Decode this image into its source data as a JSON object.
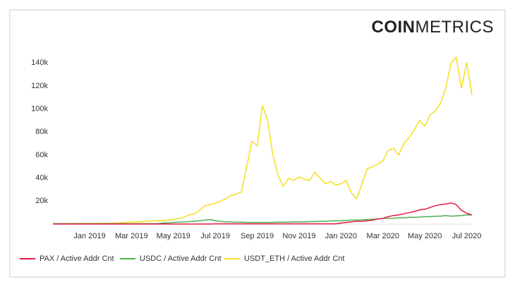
{
  "brand": {
    "bold": "COIN",
    "light": "METRICS"
  },
  "chart_data": {
    "type": "line",
    "categories": [
      null,
      null,
      null,
      null,
      null,
      null,
      null,
      "Jan 2019",
      null,
      null,
      null,
      null,
      null,
      null,
      null,
      "Mar 2019",
      null,
      null,
      null,
      null,
      null,
      null,
      null,
      "May 2019",
      null,
      null,
      null,
      null,
      null,
      null,
      null,
      "Jul 2019",
      null,
      null,
      null,
      null,
      null,
      null,
      null,
      "Sep 2019",
      null,
      null,
      null,
      null,
      null,
      null,
      null,
      "Nov 2019",
      null,
      null,
      null,
      null,
      null,
      null,
      null,
      "Jan 2020",
      null,
      null,
      null,
      null,
      null,
      null,
      null,
      "Mar 2020",
      null,
      null,
      null,
      null,
      null,
      null,
      null,
      "May 2020",
      null,
      null,
      null,
      null,
      null,
      null,
      null,
      "Jul 2020",
      null
    ],
    "ylim": [
      0,
      145000
    ],
    "yticks": [
      {
        "value": 20000,
        "label": "20k"
      },
      {
        "value": 40000,
        "label": "40k"
      },
      {
        "value": 60000,
        "label": "60k"
      },
      {
        "value": 80000,
        "label": "80k"
      },
      {
        "value": 100000,
        "label": "100k"
      },
      {
        "value": 120000,
        "label": "120k"
      },
      {
        "value": 140000,
        "label": "140k"
      }
    ],
    "grid": false,
    "legend": "bottom",
    "series": [
      {
        "name": "PAX / Active Addr Cnt",
        "color": "#e8183f",
        "values": [
          100,
          100,
          100,
          100,
          100,
          100,
          100,
          100,
          100,
          100,
          100,
          100,
          100,
          100,
          100,
          100,
          100,
          100,
          100,
          100,
          100,
          100,
          100,
          100,
          100,
          100,
          100,
          100,
          100,
          100,
          100,
          300,
          300,
          300,
          300,
          300,
          300,
          300,
          300,
          300,
          300,
          300,
          300,
          300,
          300,
          300,
          300,
          300,
          300,
          300,
          300,
          300,
          300,
          300,
          300,
          1000,
          1500,
          2000,
          2500,
          2500,
          3000,
          3500,
          4500,
          5000,
          6500,
          7500,
          8000,
          9000,
          10000,
          11000,
          12500,
          13000,
          14500,
          16000,
          17000,
          17500,
          18500,
          17000,
          12000,
          9500,
          8000
        ]
      },
      {
        "name": "USDC / Active Addr Cnt",
        "color": "#4caf50",
        "values": [
          500,
          500,
          500,
          500,
          500,
          500,
          500,
          500,
          500,
          500,
          500,
          500,
          500,
          500,
          500,
          500,
          500,
          500,
          500,
          500,
          500,
          1000,
          1200,
          1500,
          1800,
          2000,
          2200,
          2500,
          3000,
          3500,
          4000,
          3000,
          2500,
          2000,
          2000,
          1800,
          1800,
          1500,
          1500,
          1500,
          1500,
          1500,
          1500,
          1800,
          1800,
          1800,
          2000,
          2000,
          2000,
          2200,
          2200,
          2500,
          2500,
          2800,
          3000,
          3000,
          3200,
          3500,
          3500,
          3800,
          4000,
          4200,
          4500,
          5000,
          5000,
          5200,
          5500,
          5500,
          6000,
          6000,
          6200,
          6500,
          6500,
          7000,
          7000,
          7500,
          7000,
          7200,
          7500,
          8000,
          8000
        ]
      },
      {
        "name": "USDT_ETH / Active Addr Cnt",
        "color": "#f3df1c",
        "values": [
          500,
          500,
          500,
          500,
          600,
          600,
          600,
          700,
          700,
          800,
          800,
          900,
          1000,
          1200,
          1500,
          1800,
          2000,
          2200,
          2500,
          2800,
          3000,
          3200,
          3500,
          4000,
          5000,
          6000,
          8000,
          9000,
          12000,
          16000,
          17000,
          18000,
          20000,
          22000,
          25000,
          26000,
          28000,
          50000,
          72000,
          68000,
          103000,
          90000,
          60000,
          42000,
          33000,
          40000,
          38000,
          41000,
          39000,
          38000,
          45000,
          40000,
          35000,
          37000,
          34000,
          35000,
          38000,
          27000,
          22000,
          35000,
          48000,
          50000,
          52000,
          55000,
          64000,
          66000,
          60000,
          70000,
          75000,
          82000,
          90000,
          85000,
          95000,
          98000,
          105000,
          118000,
          140000,
          145000,
          118000,
          140000,
          112000
        ]
      }
    ]
  }
}
